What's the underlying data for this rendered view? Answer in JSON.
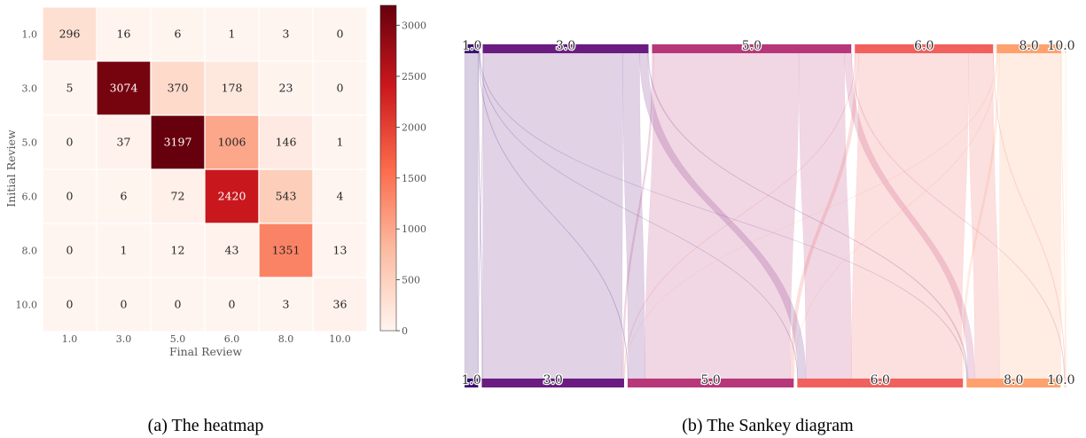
{
  "captions": {
    "heatmap": "(a) The heatmap",
    "sankey": "(b) The Sankey diagram"
  },
  "colors": {
    "palette": [
      "#fff5f0",
      "#fcbba1",
      "#fb6a4a",
      "#cb181d",
      "#67000d"
    ],
    "node_colors": [
      "#3b0f70",
      "#6a1c81",
      "#b73779",
      "#f1605d",
      "#fea16e",
      "#fde4c8"
    ]
  },
  "chart_data": [
    {
      "type": "heatmap",
      "title": "",
      "xlabel": "Final Review",
      "ylabel": "Initial Review",
      "x_categories": [
        "1.0",
        "3.0",
        "5.0",
        "6.0",
        "8.0",
        "10.0"
      ],
      "y_categories": [
        "1.0",
        "3.0",
        "5.0",
        "6.0",
        "8.0",
        "10.0"
      ],
      "values": [
        [
          296,
          16,
          6,
          1,
          3,
          0
        ],
        [
          5,
          3074,
          370,
          178,
          23,
          0
        ],
        [
          0,
          37,
          3197,
          1006,
          146,
          1
        ],
        [
          0,
          6,
          72,
          2420,
          543,
          4
        ],
        [
          0,
          1,
          12,
          43,
          1351,
          13
        ],
        [
          0,
          0,
          0,
          0,
          3,
          36
        ]
      ],
      "colorbar": {
        "ticks": [
          0,
          500,
          1000,
          1500,
          2000,
          2500,
          3000
        ],
        "range": [
          0,
          3197
        ],
        "colormap": "Reds"
      }
    },
    {
      "type": "sankey",
      "title": "",
      "source_labels": [
        "1.0",
        "3.0",
        "5.0",
        "6.0",
        "8.0",
        "10.0"
      ],
      "target_labels": [
        "1.0",
        "3.0",
        "5.0",
        "6.0",
        "8.0",
        "10.0"
      ],
      "source_position": "top",
      "target_position": "bottom",
      "flows": [
        [
          296,
          16,
          6,
          1,
          3,
          0
        ],
        [
          5,
          3074,
          370,
          178,
          23,
          0
        ],
        [
          0,
          37,
          3197,
          1006,
          146,
          1
        ],
        [
          0,
          6,
          72,
          2420,
          543,
          4
        ],
        [
          0,
          1,
          12,
          43,
          1351,
          13
        ],
        [
          0,
          0,
          0,
          0,
          3,
          36
        ]
      ]
    }
  ]
}
